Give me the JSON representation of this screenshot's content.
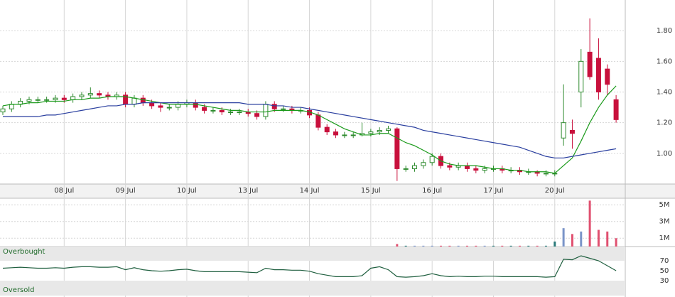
{
  "chart_data": [
    {
      "type": "candlestick",
      "categories": [
        null,
        null,
        null,
        null,
        null,
        null,
        null,
        "08 Jul",
        null,
        null,
        null,
        null,
        null,
        null,
        "09 Jul",
        null,
        null,
        null,
        null,
        null,
        null,
        "10 Jul",
        null,
        null,
        null,
        null,
        null,
        null,
        "13 Jul",
        null,
        null,
        null,
        null,
        null,
        null,
        "14 Jul",
        null,
        null,
        null,
        null,
        null,
        null,
        "15 Jul",
        null,
        null,
        null,
        null,
        null,
        null,
        "16 Jul",
        null,
        null,
        null,
        null,
        null,
        null,
        "17 Jul",
        null,
        null,
        null,
        null,
        null,
        null,
        "20 Jul",
        null,
        null,
        null,
        null,
        null,
        null,
        null
      ],
      "open": [
        1.27,
        1.29,
        1.32,
        1.34,
        1.35,
        1.35,
        1.35,
        1.36,
        1.35,
        1.37,
        1.38,
        1.39,
        1.38,
        1.37,
        1.38,
        1.32,
        1.36,
        1.33,
        1.31,
        1.3,
        1.3,
        1.32,
        1.33,
        1.3,
        1.28,
        1.28,
        1.27,
        1.27,
        1.27,
        1.26,
        1.24,
        1.32,
        1.29,
        1.29,
        1.28,
        1.28,
        1.25,
        1.17,
        1.14,
        1.12,
        1.12,
        1.12,
        1.13,
        1.14,
        1.15,
        1.16,
        0.9,
        0.9,
        0.92,
        0.94,
        0.98,
        0.92,
        0.91,
        0.92,
        0.9,
        0.89,
        0.9,
        0.9,
        0.89,
        0.89,
        0.88,
        0.88,
        0.87,
        0.87,
        1.1,
        1.15,
        1.4,
        1.66,
        1.62,
        1.55,
        1.35
      ],
      "high": [
        1.31,
        1.34,
        1.36,
        1.37,
        1.37,
        1.37,
        1.38,
        1.38,
        1.39,
        1.4,
        1.43,
        1.41,
        1.4,
        1.4,
        1.4,
        1.38,
        1.38,
        1.35,
        1.33,
        1.32,
        1.34,
        1.35,
        1.35,
        1.32,
        1.3,
        1.3,
        1.29,
        1.29,
        1.29,
        1.28,
        1.34,
        1.34,
        1.31,
        1.31,
        1.3,
        1.3,
        1.27,
        1.19,
        1.16,
        1.14,
        1.14,
        1.2,
        1.16,
        1.17,
        1.18,
        1.17,
        0.92,
        0.94,
        0.96,
        1.0,
        1.0,
        0.94,
        0.94,
        0.94,
        0.92,
        0.92,
        0.92,
        0.92,
        0.91,
        0.91,
        0.9,
        0.89,
        0.89,
        0.89,
        1.45,
        1.22,
        1.68,
        1.88,
        1.75,
        1.58,
        1.38
      ],
      "low": [
        1.25,
        1.27,
        1.3,
        1.32,
        1.33,
        1.33,
        1.33,
        1.33,
        1.33,
        1.35,
        1.36,
        1.36,
        1.35,
        1.35,
        1.3,
        1.3,
        1.31,
        1.29,
        1.27,
        1.28,
        1.28,
        1.3,
        1.28,
        1.26,
        1.26,
        1.25,
        1.25,
        1.25,
        1.24,
        1.22,
        1.22,
        1.27,
        1.27,
        1.26,
        1.26,
        1.23,
        1.15,
        1.12,
        1.1,
        1.1,
        1.1,
        1.11,
        1.11,
        1.12,
        1.13,
        0.82,
        0.88,
        0.88,
        0.9,
        0.92,
        0.9,
        0.89,
        0.89,
        0.88,
        0.87,
        0.87,
        0.88,
        0.87,
        0.87,
        0.86,
        0.86,
        0.85,
        0.85,
        0.85,
        1.05,
        1.03,
        1.3,
        1.48,
        1.35,
        1.38,
        1.2
      ],
      "close": [
        1.29,
        1.32,
        1.34,
        1.35,
        1.35,
        1.35,
        1.36,
        1.35,
        1.37,
        1.38,
        1.39,
        1.38,
        1.37,
        1.38,
        1.32,
        1.36,
        1.33,
        1.31,
        1.3,
        1.3,
        1.32,
        1.33,
        1.3,
        1.28,
        1.28,
        1.27,
        1.27,
        1.27,
        1.26,
        1.24,
        1.32,
        1.29,
        1.29,
        1.28,
        1.28,
        1.25,
        1.17,
        1.14,
        1.12,
        1.12,
        1.12,
        1.13,
        1.14,
        1.15,
        1.16,
        0.9,
        0.9,
        0.92,
        0.94,
        0.98,
        0.92,
        0.91,
        0.92,
        0.9,
        0.89,
        0.9,
        0.9,
        0.89,
        0.89,
        0.88,
        0.88,
        0.87,
        0.87,
        0.87,
        1.2,
        1.13,
        1.6,
        1.5,
        1.4,
        1.45,
        1.22
      ],
      "up_color": "#2e8b2e",
      "down_color": "#c8103c",
      "overlays": [
        {
          "color": "#1a9a1a",
          "values": [
            1.31,
            1.32,
            1.32,
            1.33,
            1.33,
            1.34,
            1.34,
            1.34,
            1.35,
            1.35,
            1.36,
            1.36,
            1.37,
            1.37,
            1.37,
            1.36,
            1.35,
            1.34,
            1.33,
            1.32,
            1.32,
            1.32,
            1.32,
            1.31,
            1.3,
            1.29,
            1.28,
            1.28,
            1.27,
            1.27,
            1.27,
            1.28,
            1.28,
            1.28,
            1.28,
            1.27,
            1.25,
            1.22,
            1.19,
            1.16,
            1.14,
            1.12,
            1.12,
            1.13,
            1.13,
            1.1,
            1.07,
            1.05,
            1.02,
            0.99,
            0.95,
            0.93,
            0.92,
            0.92,
            0.92,
            0.91,
            0.9,
            0.9,
            0.89,
            0.89,
            0.88,
            0.88,
            0.88,
            0.87,
            0.92,
            0.97,
            1.08,
            1.2,
            1.3,
            1.38,
            1.44
          ]
        },
        {
          "color": "#2a3f9f",
          "values": [
            1.24,
            1.24,
            1.24,
            1.24,
            1.24,
            1.25,
            1.25,
            1.26,
            1.27,
            1.28,
            1.29,
            1.3,
            1.31,
            1.31,
            1.32,
            1.32,
            1.33,
            1.33,
            1.33,
            1.33,
            1.33,
            1.33,
            1.33,
            1.33,
            1.33,
            1.33,
            1.33,
            1.33,
            1.32,
            1.32,
            1.32,
            1.31,
            1.31,
            1.3,
            1.3,
            1.29,
            1.28,
            1.27,
            1.26,
            1.25,
            1.24,
            1.23,
            1.22,
            1.21,
            1.2,
            1.19,
            1.18,
            1.17,
            1.15,
            1.14,
            1.13,
            1.12,
            1.11,
            1.1,
            1.09,
            1.08,
            1.07,
            1.06,
            1.05,
            1.04,
            1.02,
            1.0,
            0.98,
            0.97,
            0.97,
            0.98,
            0.99,
            1.0,
            1.01,
            1.02,
            1.03
          ]
        }
      ],
      "ylim": [
        0.8,
        2.0
      ],
      "yticks": [
        {
          "value": 1.0,
          "label": "1.00"
        },
        {
          "value": 1.2,
          "label": "1.20"
        },
        {
          "value": 1.4,
          "label": "1.40"
        },
        {
          "value": 1.6,
          "label": "1.60"
        },
        {
          "value": 1.8,
          "label": "1.80"
        }
      ],
      "grid": true
    },
    {
      "type": "bar",
      "values": [
        0,
        0,
        0,
        0,
        0,
        0,
        0,
        0,
        0,
        0,
        0,
        0,
        0,
        0,
        0,
        0,
        0,
        0,
        0,
        0,
        0,
        0,
        0,
        0,
        0,
        0,
        0,
        0,
        0,
        0,
        0,
        0,
        0,
        0,
        0,
        0,
        0,
        0,
        0,
        0,
        0,
        0,
        0,
        0,
        0,
        300000,
        100000,
        100000,
        100000,
        100000,
        100000,
        100000,
        100000,
        100000,
        100000,
        100000,
        100000,
        100000,
        100000,
        100000,
        100000,
        100000,
        100000,
        600000,
        2200000,
        1500000,
        1800000,
        5500000,
        2000000,
        1800000,
        1000000
      ],
      "up_color": "#7a94c8",
      "down_color": "#e05070",
      "flat_color": "#2a7a7a",
      "ylim": [
        0,
        5700000
      ],
      "yticks": [
        {
          "value": 1000000,
          "label": "1M"
        },
        {
          "value": 3000000,
          "label": "3M"
        },
        {
          "value": 5000000,
          "label": "5M"
        }
      ],
      "grid": true
    },
    {
      "type": "line",
      "values": [
        55,
        56,
        57,
        56,
        55,
        55,
        56,
        55,
        57,
        58,
        58,
        57,
        57,
        58,
        52,
        56,
        52,
        50,
        49,
        50,
        52,
        53,
        50,
        48,
        48,
        48,
        48,
        48,
        47,
        46,
        55,
        52,
        52,
        51,
        51,
        49,
        44,
        41,
        38,
        38,
        38,
        40,
        55,
        58,
        52,
        38,
        37,
        38,
        40,
        44,
        40,
        38,
        39,
        38,
        38,
        39,
        39,
        38,
        38,
        38,
        38,
        38,
        37,
        38,
        73,
        72,
        80,
        75,
        70,
        60,
        50
      ],
      "color": "#1f5f3f",
      "ylim": [
        0,
        100
      ],
      "yticks": [
        30,
        50,
        70
      ],
      "bands": [
        {
          "label": "Overbought",
          "from": 70,
          "to": 100
        },
        {
          "label": "Oversold",
          "from": 0,
          "to": 30
        }
      ],
      "band_color": "#e8e8e8"
    }
  ]
}
